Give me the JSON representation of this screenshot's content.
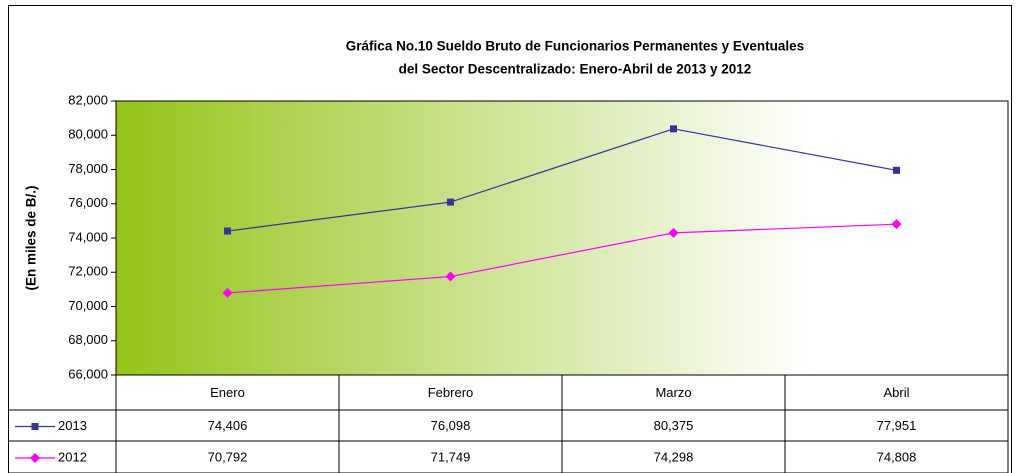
{
  "chart_data": {
    "type": "line",
    "title": [
      "Gráfica No.10 Sueldo Bruto de Funcionarios Permanentes y Eventuales",
      "del Sector Descentralizado: Enero-Abril de 2013 y 2012"
    ],
    "y_label": "(En miles de B/.)",
    "categories": [
      "Enero",
      "Febrero",
      "Marzo",
      "Abril"
    ],
    "series": [
      {
        "name": "2013",
        "color": "#333399",
        "marker": "square",
        "values": [
          74406,
          76098,
          80375,
          77951
        ],
        "value_labels": [
          "74,406",
          "76,098",
          "80,375",
          "77,951"
        ]
      },
      {
        "name": "2012",
        "color": "#ff00ff",
        "marker": "diamond",
        "values": [
          70792,
          71749,
          74298,
          74808
        ],
        "value_labels": [
          "70,792",
          "71,749",
          "74,298",
          "74,808"
        ]
      }
    ],
    "ylim": [
      66000,
      82000
    ],
    "yticks": [
      {
        "value": 66000,
        "label": "66,000"
      },
      {
        "value": 68000,
        "label": "68,000"
      },
      {
        "value": 70000,
        "label": "70,000"
      },
      {
        "value": 72000,
        "label": "72,000"
      },
      {
        "value": 74000,
        "label": "74,000"
      },
      {
        "value": 76000,
        "label": "76,000"
      },
      {
        "value": 78000,
        "label": "78,000"
      },
      {
        "value": 80000,
        "label": "80,000"
      },
      {
        "value": 82000,
        "label": "82,000"
      }
    ],
    "data_table": true
  }
}
